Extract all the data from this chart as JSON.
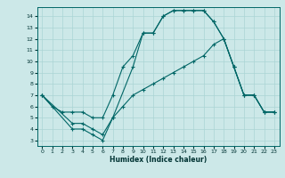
{
  "xlabel": "Humidex (Indice chaleur)",
  "bg_color": "#cce8e8",
  "line_color": "#006666",
  "grid_color": "#aad4d4",
  "xlim": [
    -0.5,
    23.5
  ],
  "ylim": [
    2.5,
    14.8
  ],
  "xticks": [
    0,
    1,
    2,
    3,
    4,
    5,
    6,
    7,
    8,
    9,
    10,
    11,
    12,
    13,
    14,
    15,
    16,
    17,
    18,
    19,
    20,
    21,
    22,
    23
  ],
  "yticks": [
    3,
    4,
    5,
    6,
    7,
    8,
    9,
    10,
    11,
    12,
    13,
    14
  ],
  "line1_x": [
    0,
    1,
    2,
    3,
    4,
    5,
    6,
    7,
    8,
    9,
    10,
    11,
    12,
    13,
    14,
    15,
    16,
    17,
    18,
    19,
    20,
    21,
    22,
    23
  ],
  "line1_y": [
    7,
    6,
    5.5,
    5.5,
    5.5,
    5,
    5,
    7,
    9.5,
    10.5,
    12.5,
    12.5,
    14,
    14.5,
    14.5,
    14.5,
    14.5,
    13.5,
    12,
    9.5,
    7,
    7,
    5.5,
    5.5
  ],
  "line2_x": [
    0,
    3,
    4,
    5,
    6,
    7,
    9,
    10,
    11,
    12,
    13,
    14,
    15,
    16,
    17,
    18,
    19,
    20,
    21,
    22,
    23
  ],
  "line2_y": [
    7,
    4,
    4,
    3.5,
    3,
    5,
    9.5,
    12.5,
    12.5,
    14,
    14.5,
    14.5,
    14.5,
    14.5,
    13.5,
    12,
    9.5,
    7,
    7,
    5.5,
    5.5
  ],
  "line3_x": [
    0,
    3,
    4,
    5,
    6,
    7,
    8,
    9,
    10,
    11,
    12,
    13,
    14,
    15,
    16,
    17,
    18,
    19,
    20,
    21,
    22,
    23
  ],
  "line3_y": [
    7,
    4.5,
    4.5,
    4,
    3.5,
    5,
    6,
    7,
    7.5,
    8,
    8.5,
    9,
    9.5,
    10,
    10.5,
    11.5,
    12,
    9.5,
    7,
    7,
    5.5,
    5.5
  ]
}
